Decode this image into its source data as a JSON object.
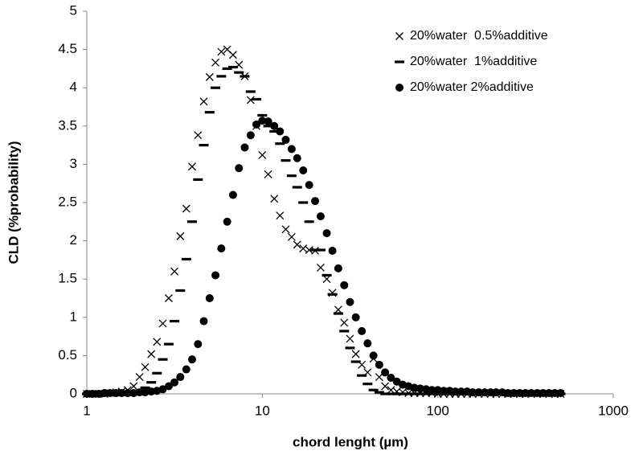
{
  "chart_data": {
    "type": "scatter",
    "x_label": "chord lenght (µm)",
    "y_label": "CLD (%probability)",
    "x_scale": "log",
    "xlim": [
      1,
      1000
    ],
    "xticks": [
      1,
      10,
      100,
      1000
    ],
    "ylim": [
      0,
      5
    ],
    "yticks": [
      0,
      0.5,
      1,
      1.5,
      2,
      2.5,
      3,
      3.5,
      4,
      4.5,
      5
    ],
    "grid": false,
    "legend_position": "top-right",
    "x": [
      1,
      1.08,
      1.17,
      1.26,
      1.36,
      1.47,
      1.58,
      1.71,
      1.85,
      2,
      2.15,
      2.33,
      2.51,
      2.71,
      2.93,
      3.16,
      3.41,
      3.69,
      3.98,
      4.3,
      4.64,
      5.01,
      5.41,
      5.84,
      6.31,
      6.81,
      7.36,
      7.94,
      8.58,
      9.26,
      10,
      10.8,
      11.7,
      12.6,
      13.6,
      14.7,
      15.8,
      17.1,
      18.5,
      20,
      21.5,
      23.3,
      25.1,
      27.1,
      29.3,
      31.6,
      34.1,
      36.9,
      39.8,
      43,
      46.4,
      50.1,
      54.1,
      58.4,
      63.1,
      68.1,
      73.6,
      79.4,
      85.8,
      92.6,
      100,
      108,
      117,
      126,
      136,
      147,
      158,
      171,
      185,
      200,
      215,
      233,
      251,
      271,
      293,
      316,
      341,
      369,
      398,
      430,
      464,
      501
    ],
    "series": [
      {
        "name": "20%water  0.5%additive",
        "color": "#000000",
        "marker": "x",
        "values": [
          0,
          0,
          0,
          0,
          0.01,
          0.02,
          0.03,
          0.05,
          0.1,
          0.22,
          0.35,
          0.52,
          0.68,
          0.92,
          1.25,
          1.6,
          2.06,
          2.42,
          2.97,
          3.38,
          3.82,
          4.14,
          4.33,
          4.47,
          4.5,
          4.43,
          4.3,
          4.15,
          3.84,
          3.5,
          3.12,
          2.87,
          2.55,
          2.33,
          2.15,
          2.05,
          1.95,
          1.9,
          1.88,
          1.87,
          1.65,
          1.5,
          1.32,
          1.1,
          0.93,
          0.72,
          0.52,
          0.38,
          0.28,
          0.46,
          0.22,
          0.1,
          0.05,
          0.03,
          0.02,
          0.01,
          0.01,
          0.01,
          0.01,
          0.01,
          0,
          0,
          0,
          0,
          0,
          0,
          0,
          0,
          0,
          0,
          0,
          0,
          0,
          0,
          0,
          0,
          0,
          0,
          0,
          0,
          0,
          0
        ]
      },
      {
        "name": "20%water  1%additive",
        "color": "#000000",
        "marker": "dash",
        "values": [
          0,
          0,
          0,
          0,
          0.01,
          0.01,
          0.01,
          0.02,
          0.02,
          0.03,
          0.08,
          0.15,
          0.27,
          0.45,
          0.65,
          0.95,
          1.35,
          1.76,
          2.25,
          2.8,
          3.25,
          3.68,
          4.0,
          4.15,
          4.25,
          4.27,
          4.2,
          4.15,
          3.95,
          3.85,
          3.64,
          3.5,
          3.43,
          3.27,
          3.05,
          2.85,
          2.7,
          2.5,
          2.25,
          1.88,
          1.88,
          1.55,
          1.3,
          1.05,
          0.82,
          0.6,
          0.42,
          0.24,
          0.13,
          0.05,
          0.02,
          0,
          0,
          0,
          0,
          0,
          0,
          0,
          0,
          0,
          0,
          0,
          0,
          0,
          0,
          0,
          0,
          0,
          0,
          0,
          0,
          0,
          0,
          0,
          0,
          0,
          0,
          0,
          0,
          0,
          0,
          0
        ]
      },
      {
        "name": "20%water 2%additive",
        "color": "#000000",
        "marker": "circle",
        "values": [
          0,
          0,
          0,
          0.01,
          0.01,
          0.01,
          0.01,
          0.01,
          0.01,
          0.02,
          0.02,
          0.03,
          0.04,
          0.06,
          0.1,
          0.15,
          0.22,
          0.32,
          0.45,
          0.65,
          0.95,
          1.25,
          1.55,
          1.9,
          2.25,
          2.6,
          2.95,
          3.22,
          3.38,
          3.52,
          3.57,
          3.56,
          3.5,
          3.43,
          3.32,
          3.2,
          3.08,
          2.92,
          2.73,
          2.52,
          2.32,
          2.1,
          1.87,
          1.64,
          1.42,
          1.2,
          1.0,
          0.82,
          0.66,
          0.5,
          0.38,
          0.28,
          0.21,
          0.16,
          0.12,
          0.1,
          0.08,
          0.07,
          0.06,
          0.05,
          0.05,
          0.04,
          0.04,
          0.03,
          0.03,
          0.03,
          0.02,
          0.02,
          0.02,
          0.02,
          0.02,
          0.02,
          0.01,
          0.01,
          0.01,
          0.01,
          0.01,
          0.01,
          0.01,
          0.01,
          0.01,
          0.01
        ]
      }
    ]
  }
}
